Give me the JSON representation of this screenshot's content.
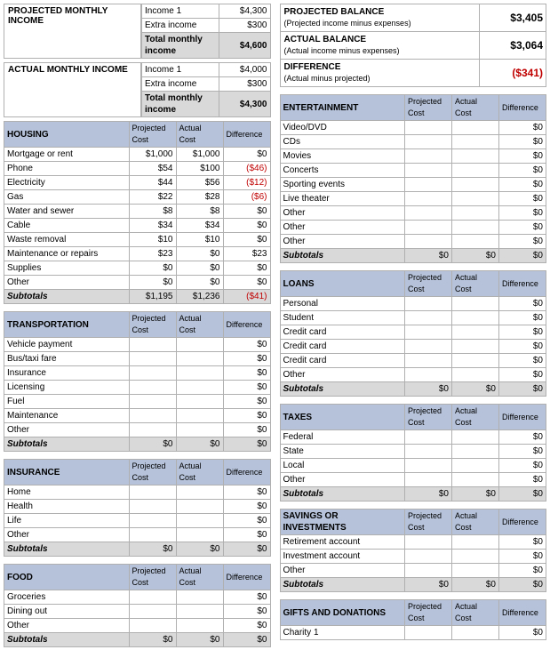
{
  "labels": {
    "income1": "Income 1",
    "extra": "Extra income",
    "totalIncome": "Total monthly income",
    "projCost": "Projected Cost",
    "actCost": "Actual Cost",
    "diff": "Difference",
    "subtotals": "Subtotals"
  },
  "projectedIncome": {
    "label": "PROJECTED MONTHLY INCOME",
    "income1": "$4,300",
    "extra": "$300",
    "total": "$4,600"
  },
  "actualIncome": {
    "label": "ACTUAL MONTHLY INCOME",
    "income1": "$4,000",
    "extra": "$300",
    "total": "$4,300"
  },
  "balance": {
    "projLabel": "PROJECTED BALANCE",
    "projSub": "(Projected income minus expenses)",
    "projVal": "$3,405",
    "actLabel": "ACTUAL BALANCE",
    "actSub": "(Actual income minus expenses)",
    "actVal": "$3,064",
    "diffLabel": "DIFFERENCE",
    "diffSub": "(Actual minus projected)",
    "diffVal": "($341)"
  },
  "cats": {
    "housing": {
      "title": "HOUSING",
      "rows": [
        {
          "n": "Mortgage or rent",
          "p": "$1,000",
          "a": "$1,000",
          "d": "$0"
        },
        {
          "n": "Phone",
          "p": "$54",
          "a": "$100",
          "d": "($46)",
          "neg": true
        },
        {
          "n": "Electricity",
          "p": "$44",
          "a": "$56",
          "d": "($12)",
          "neg": true
        },
        {
          "n": "Gas",
          "p": "$22",
          "a": "$28",
          "d": "($6)",
          "neg": true
        },
        {
          "n": "Water and sewer",
          "p": "$8",
          "a": "$8",
          "d": "$0"
        },
        {
          "n": "Cable",
          "p": "$34",
          "a": "$34",
          "d": "$0"
        },
        {
          "n": "Waste removal",
          "p": "$10",
          "a": "$10",
          "d": "$0"
        },
        {
          "n": "Maintenance or repairs",
          "p": "$23",
          "a": "$0",
          "d": "$23"
        },
        {
          "n": "Supplies",
          "p": "$0",
          "a": "$0",
          "d": "$0"
        },
        {
          "n": "Other",
          "p": "$0",
          "a": "$0",
          "d": "$0"
        }
      ],
      "sub": {
        "p": "$1,195",
        "a": "$1,236",
        "d": "($41)",
        "neg": true
      }
    },
    "transportation": {
      "title": "TRANSPORTATION",
      "rows": [
        {
          "n": "Vehicle payment",
          "p": "",
          "a": "",
          "d": "$0"
        },
        {
          "n": "Bus/taxi fare",
          "p": "",
          "a": "",
          "d": "$0"
        },
        {
          "n": "Insurance",
          "p": "",
          "a": "",
          "d": "$0"
        },
        {
          "n": "Licensing",
          "p": "",
          "a": "",
          "d": "$0"
        },
        {
          "n": "Fuel",
          "p": "",
          "a": "",
          "d": "$0"
        },
        {
          "n": "Maintenance",
          "p": "",
          "a": "",
          "d": "$0"
        },
        {
          "n": "Other",
          "p": "",
          "a": "",
          "d": "$0"
        }
      ],
      "sub": {
        "p": "$0",
        "a": "$0",
        "d": "$0"
      }
    },
    "insurance": {
      "title": "INSURANCE",
      "rows": [
        {
          "n": "Home",
          "p": "",
          "a": "",
          "d": "$0"
        },
        {
          "n": "Health",
          "p": "",
          "a": "",
          "d": "$0"
        },
        {
          "n": "Life",
          "p": "",
          "a": "",
          "d": "$0"
        },
        {
          "n": "Other",
          "p": "",
          "a": "",
          "d": "$0"
        }
      ],
      "sub": {
        "p": "$0",
        "a": "$0",
        "d": "$0"
      }
    },
    "food": {
      "title": "FOOD",
      "rows": [
        {
          "n": "Groceries",
          "p": "",
          "a": "",
          "d": "$0"
        },
        {
          "n": "Dining out",
          "p": "",
          "a": "",
          "d": "$0"
        },
        {
          "n": "Other",
          "p": "",
          "a": "",
          "d": "$0"
        }
      ],
      "sub": {
        "p": "$0",
        "a": "$0",
        "d": "$0"
      }
    },
    "entertainment": {
      "title": "ENTERTAINMENT",
      "rows": [
        {
          "n": "Video/DVD",
          "p": "",
          "a": "",
          "d": "$0"
        },
        {
          "n": "CDs",
          "p": "",
          "a": "",
          "d": "$0"
        },
        {
          "n": "Movies",
          "p": "",
          "a": "",
          "d": "$0"
        },
        {
          "n": "Concerts",
          "p": "",
          "a": "",
          "d": "$0"
        },
        {
          "n": "Sporting events",
          "p": "",
          "a": "",
          "d": "$0"
        },
        {
          "n": "Live theater",
          "p": "",
          "a": "",
          "d": "$0"
        },
        {
          "n": "Other",
          "p": "",
          "a": "",
          "d": "$0"
        },
        {
          "n": "Other",
          "p": "",
          "a": "",
          "d": "$0"
        },
        {
          "n": "Other",
          "p": "",
          "a": "",
          "d": "$0"
        }
      ],
      "sub": {
        "p": "$0",
        "a": "$0",
        "d": "$0"
      }
    },
    "loans": {
      "title": "LOANS",
      "rows": [
        {
          "n": "Personal",
          "p": "",
          "a": "",
          "d": "$0"
        },
        {
          "n": "Student",
          "p": "",
          "a": "",
          "d": "$0"
        },
        {
          "n": "Credit card",
          "p": "",
          "a": "",
          "d": "$0"
        },
        {
          "n": "Credit card",
          "p": "",
          "a": "",
          "d": "$0"
        },
        {
          "n": "Credit card",
          "p": "",
          "a": "",
          "d": "$0"
        },
        {
          "n": "Other",
          "p": "",
          "a": "",
          "d": "$0"
        }
      ],
      "sub": {
        "p": "$0",
        "a": "$0",
        "d": "$0"
      }
    },
    "taxes": {
      "title": "TAXES",
      "rows": [
        {
          "n": "Federal",
          "p": "",
          "a": "",
          "d": "$0"
        },
        {
          "n": "State",
          "p": "",
          "a": "",
          "d": "$0"
        },
        {
          "n": "Local",
          "p": "",
          "a": "",
          "d": "$0"
        },
        {
          "n": "Other",
          "p": "",
          "a": "",
          "d": "$0"
        }
      ],
      "sub": {
        "p": "$0",
        "a": "$0",
        "d": "$0"
      }
    },
    "savings": {
      "title": "SAVINGS OR INVESTMENTS",
      "rows": [
        {
          "n": "Retirement account",
          "p": "",
          "a": "",
          "d": "$0"
        },
        {
          "n": "Investment account",
          "p": "",
          "a": "",
          "d": "$0"
        },
        {
          "n": "Other",
          "p": "",
          "a": "",
          "d": "$0"
        }
      ],
      "sub": {
        "p": "$0",
        "a": "$0",
        "d": "$0"
      }
    },
    "gifts": {
      "title": "GIFTS AND DONATIONS",
      "rows": [
        {
          "n": "Charity 1",
          "p": "",
          "a": "",
          "d": "$0"
        }
      ]
    }
  },
  "leftOrder": [
    "housing",
    "transportation",
    "insurance",
    "food"
  ],
  "rightOrder": [
    "entertainment",
    "loans",
    "taxes",
    "savings",
    "gifts"
  ]
}
